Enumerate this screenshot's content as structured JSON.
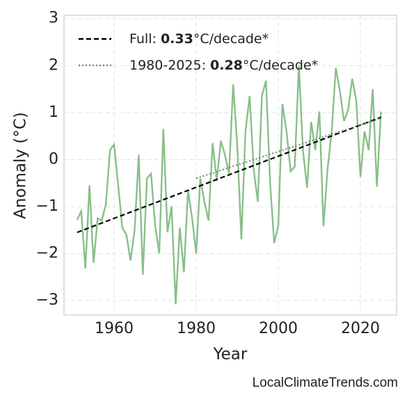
{
  "chart_data": {
    "type": "line",
    "xlabel": "Year",
    "ylabel": "Anomaly (°C)",
    "source": "LocalClimateTrends.com",
    "xlim": [
      1947.8,
      2028.8
    ],
    "ylim": [
      -3.31,
      3.07
    ],
    "xticks": [
      1960,
      1980,
      2000,
      2020
    ],
    "yticks": [
      {
        "value": -3,
        "label": "−3"
      },
      {
        "value": -2,
        "label": "−2"
      },
      {
        "value": -1,
        "label": "−1"
      },
      0,
      1,
      2,
      3
    ],
    "grid": true,
    "legend": "upper left",
    "series": [
      {
        "color": "#88bf88",
        "style": "solid",
        "x": [
          1951,
          1952,
          1953,
          1954,
          1955,
          1956,
          1957,
          1958,
          1959,
          1960,
          1961,
          1962,
          1963,
          1964,
          1965,
          1966,
          1967,
          1968,
          1969,
          1970,
          1971,
          1972,
          1973,
          1974,
          1975,
          1976,
          1977,
          1978,
          1979,
          1980,
          1981,
          1982,
          1983,
          1984,
          1985,
          1986,
          1987,
          1988,
          1989,
          1990,
          1991,
          1992,
          1993,
          1994,
          1995,
          1996,
          1997,
          1998,
          1999,
          2000,
          2001,
          2002,
          2003,
          2004,
          2005,
          2006,
          2007,
          2008,
          2009,
          2010,
          2011,
          2012,
          2013,
          2014,
          2015,
          2016,
          2017,
          2018,
          2019,
          2020,
          2021,
          2022,
          2023,
          2024,
          2025
        ],
        "values": [
          -1.28,
          -1.1,
          -2.32,
          -0.55,
          -2.2,
          -1.25,
          -1.3,
          -0.95,
          0.2,
          0.32,
          -0.55,
          -1.45,
          -1.6,
          -2.15,
          -1.5,
          0.1,
          -2.45,
          -0.4,
          -0.3,
          -1.4,
          -2.0,
          0.65,
          -1.55,
          -1.0,
          -3.08,
          -1.45,
          -2.4,
          -0.65,
          -1.25,
          -2.0,
          -0.4,
          -0.9,
          -1.3,
          0.35,
          -0.45,
          0.4,
          0.1,
          -0.3,
          1.6,
          0.3,
          -1.7,
          0.6,
          1.35,
          -0.2,
          -0.9,
          1.35,
          1.68,
          -0.5,
          -1.78,
          -1.4,
          1.18,
          0.6,
          -0.25,
          -0.15,
          2.0,
          0.2,
          -0.6,
          0.8,
          0.2,
          1.02,
          -1.42,
          -0.2,
          0.6,
          1.95,
          1.45,
          0.82,
          1.05,
          1.72,
          1.25,
          -0.37,
          0.6,
          0.2,
          1.5,
          -0.58,
          1.02
        ]
      },
      {
        "name_parts": [
          "Full: ",
          "0.33",
          "°C/decade*"
        ],
        "color": "#000000",
        "style": "dashed",
        "x": [
          1951,
          2025
        ],
        "values": [
          -1.55,
          0.9
        ]
      },
      {
        "name_parts": [
          "1980-2025: ",
          "0.28",
          "°C/decade*"
        ],
        "color": "#808080",
        "style": "dotted",
        "x": [
          1980,
          2025
        ],
        "values": [
          -0.4,
          0.88
        ]
      }
    ]
  }
}
